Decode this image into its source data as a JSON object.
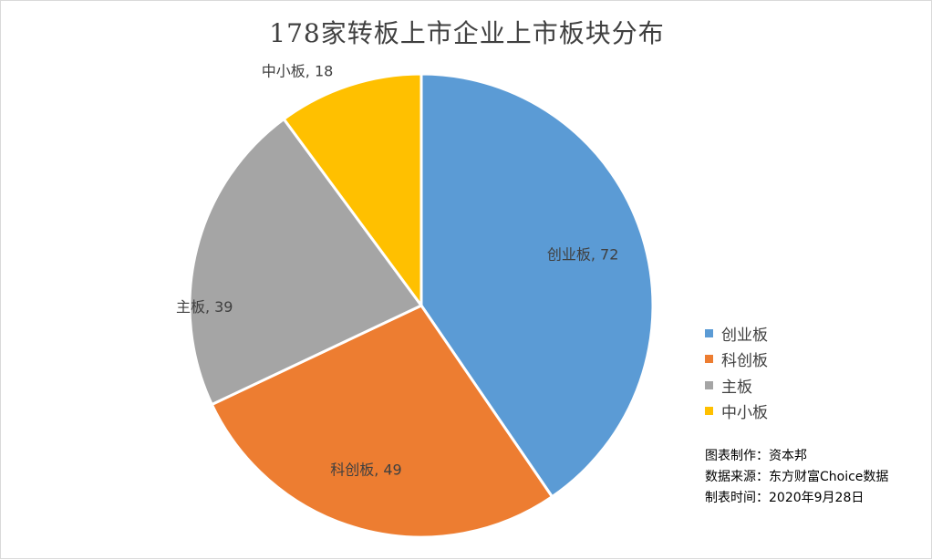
{
  "chart_data": {
    "type": "pie",
    "title": "178家转板上市企业上市板块分布",
    "categories": [
      "创业板",
      "科创板",
      "主板",
      "中小板"
    ],
    "values": [
      72,
      49,
      39,
      18
    ],
    "colors": [
      "#5B9BD5",
      "#ED7D31",
      "#A5A5A5",
      "#FFC000"
    ],
    "label_separator": ", ",
    "legend_position": "right"
  },
  "notes": [
    "图表制作：资本邦",
    "数据来源：东方财富Choice数据",
    "制表时间：2020年9月28日"
  ]
}
